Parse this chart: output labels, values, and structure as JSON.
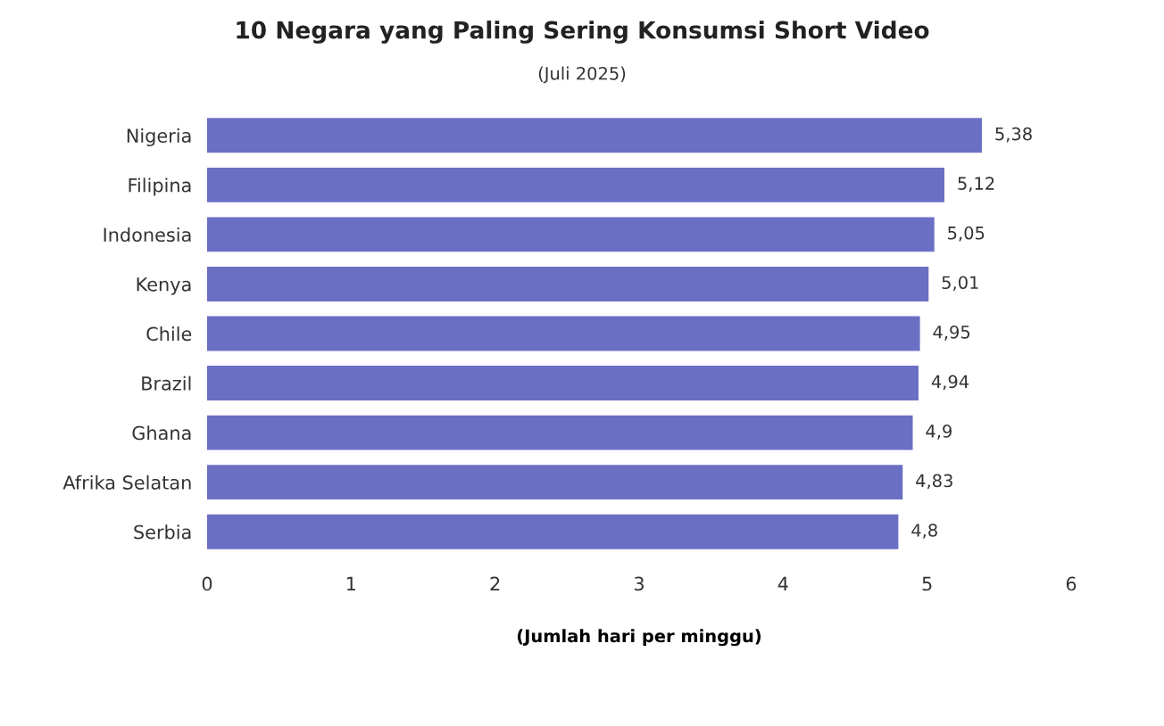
{
  "chart_data": {
    "type": "bar",
    "orientation": "horizontal",
    "title": "10 Negara yang Paling Sering Konsumsi Short Video",
    "subtitle": "(Juli 2025)",
    "xlabel": "(Jumlah hari per minggu)",
    "categories": [
      "Nigeria",
      "Filipina",
      "Indonesia",
      "Kenya",
      "Chile",
      "Brazil",
      "Ghana",
      "Afrika Selatan",
      "Serbia"
    ],
    "values": [
      5.38,
      5.12,
      5.05,
      5.01,
      4.95,
      4.94,
      4.9,
      4.83,
      4.8
    ],
    "value_labels": [
      "5,38",
      "5,12",
      "5,05",
      "5,01",
      "4,95",
      "4,94",
      "4,9",
      "4,83",
      "4,8"
    ],
    "color": "#6b6fc4",
    "xlim": [
      0,
      6
    ],
    "xticks": [
      0,
      1,
      2,
      3,
      4,
      5,
      6
    ],
    "grid": false,
    "legend": false
  }
}
